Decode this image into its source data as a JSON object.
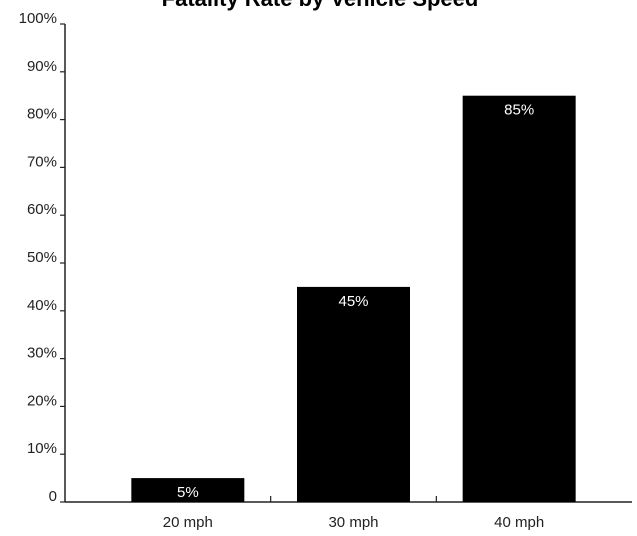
{
  "chart_data": {
    "type": "bar",
    "title": "Fatality Rate by Vehicle Speed",
    "xlabel": "",
    "ylabel": "",
    "categories": [
      "20 mph",
      "30 mph",
      "40 mph"
    ],
    "values": [
      5,
      45,
      85
    ],
    "value_labels": [
      "5%",
      "45%",
      "85%"
    ],
    "ylim": [
      0,
      100
    ],
    "yticks": [
      0,
      10,
      20,
      30,
      40,
      50,
      60,
      70,
      80,
      90,
      100
    ],
    "ytick_labels": [
      "0",
      "10%",
      "20%",
      "30%",
      "40%",
      "50%",
      "60%",
      "70%",
      "80%",
      "90%",
      "100%"
    ],
    "grid": false,
    "legend": "none",
    "bar_color": "#000000",
    "label_color": "#ffffff"
  }
}
